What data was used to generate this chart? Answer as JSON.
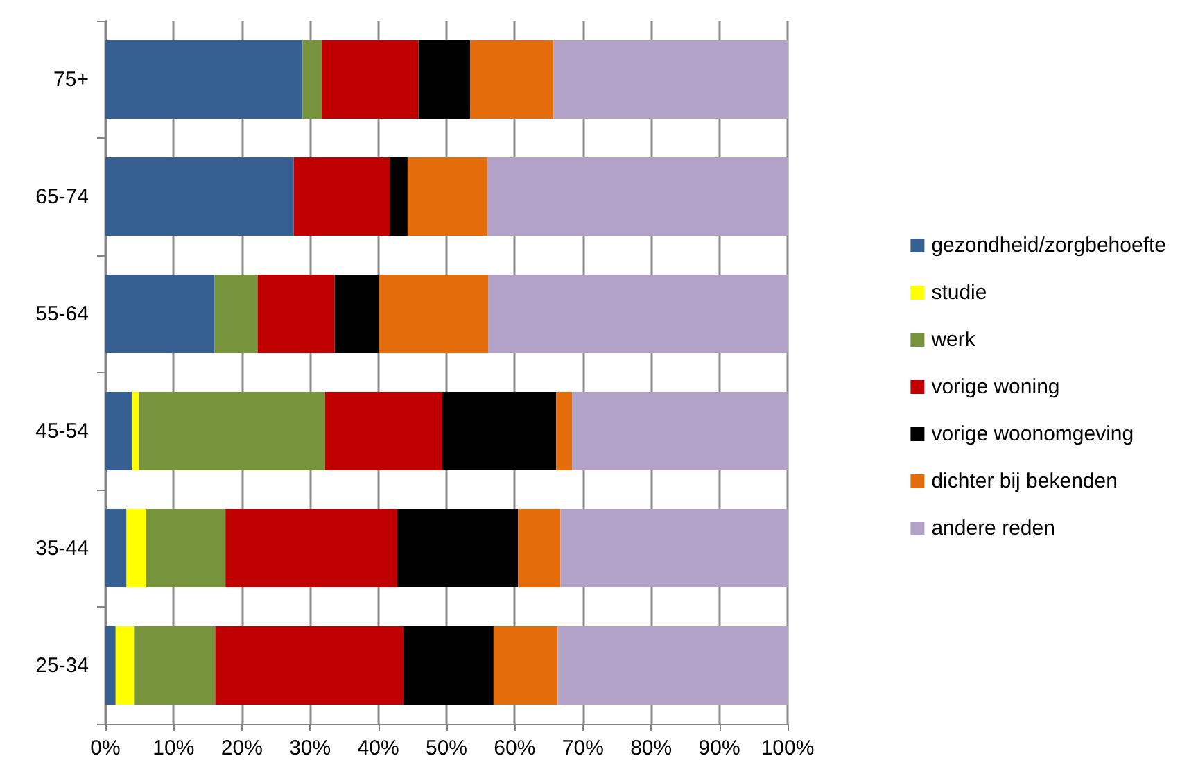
{
  "chart_data": {
    "type": "bar",
    "orientation": "horizontal",
    "stacked": true,
    "categories": [
      "75+",
      "65-74",
      "55-64",
      "45-54",
      "35-44",
      "25-34"
    ],
    "series": [
      {
        "name": "gezondheid/zorgbehoefte",
        "color": "#366092",
        "values": [
          28.9,
          27.6,
          16.0,
          3.9,
          3.1,
          1.5
        ]
      },
      {
        "name": "studie",
        "color": "#ffff00",
        "values": [
          0,
          0,
          0,
          1.0,
          2.9,
          2.7
        ]
      },
      {
        "name": "werk",
        "color": "#77933c",
        "values": [
          2.8,
          0,
          6.3,
          27.3,
          11.6,
          11.9
        ]
      },
      {
        "name": "vorige woning",
        "color": "#c00000",
        "values": [
          14.2,
          14.1,
          11.3,
          17.2,
          25.2,
          27.6
        ]
      },
      {
        "name": "vorige woonomgeving",
        "color": "#000000",
        "values": [
          7.6,
          2.6,
          6.5,
          16.7,
          17.7,
          13.2
        ]
      },
      {
        "name": "dichter bij bekenden",
        "color": "#e46c0a",
        "values": [
          12.2,
          11.7,
          16.0,
          2.3,
          6.2,
          9.4
        ]
      },
      {
        "name": "andere reden",
        "color": "#b2a2c7",
        "values": [
          34.3,
          44.0,
          43.9,
          31.6,
          33.3,
          33.7
        ]
      }
    ],
    "xlim": [
      0,
      100
    ],
    "xticks": [
      {
        "value": 0,
        "label": "0%"
      },
      {
        "value": 10,
        "label": "10%"
      },
      {
        "value": 20,
        "label": "20%"
      },
      {
        "value": 30,
        "label": "30%"
      },
      {
        "value": 40,
        "label": "40%"
      },
      {
        "value": 50,
        "label": "50%"
      },
      {
        "value": 60,
        "label": "60%"
      },
      {
        "value": 70,
        "label": "70%"
      },
      {
        "value": 80,
        "label": "80%"
      },
      {
        "value": 90,
        "label": "90%"
      },
      {
        "value": 100,
        "label": "100%"
      }
    ],
    "grid": "x",
    "legend": "right"
  }
}
